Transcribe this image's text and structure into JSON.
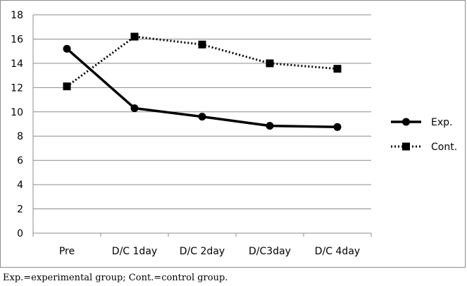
{
  "chart_data": {
    "type": "line",
    "categories": [
      "Pre",
      "D/C 1day",
      "D/C 2day",
      "D/C3day",
      "D/C 4day"
    ],
    "series": [
      {
        "name": "Exp.",
        "values": [
          15.2,
          10.3,
          9.6,
          8.85,
          8.75
        ],
        "color": "#000000",
        "marker": "circle",
        "line_style": "solid"
      },
      {
        "name": "Cont.",
        "values": [
          12.1,
          16.2,
          15.55,
          14.0,
          13.55
        ],
        "color": "#000000",
        "marker": "square",
        "line_style": "dotted"
      }
    ],
    "ylim": [
      0,
      18
    ],
    "yticks": [
      0,
      2,
      4,
      6,
      8,
      10,
      12,
      14,
      16,
      18
    ],
    "grid": "horizontal",
    "legend_position": "right"
  },
  "caption": "Exp.=experimental group; Cont.=control group."
}
